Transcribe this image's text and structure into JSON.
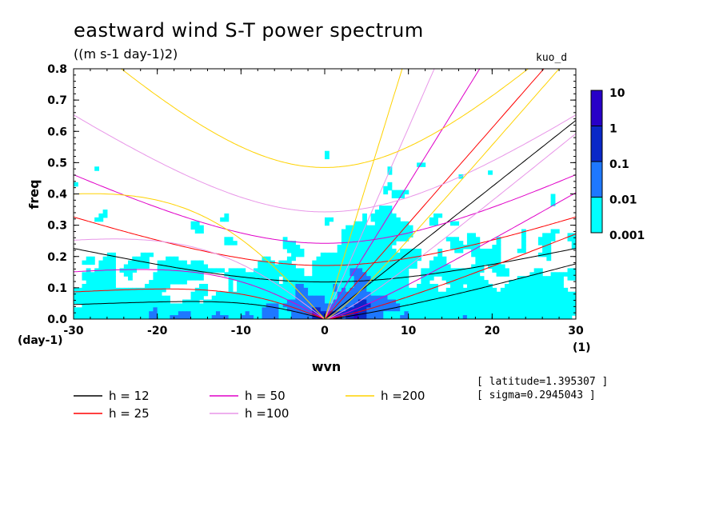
{
  "chart_data": {
    "type": "heatmap",
    "title": "eastward wind S-T power spectrum",
    "subtitle": "((m s-1 day-1)2)",
    "model_label": "kuo_d",
    "xlabel": "wvn",
    "x_unit": "(1)",
    "ylabel": "freq",
    "y_unit": "(day-1)",
    "xlim": [
      -30,
      30
    ],
    "ylim": [
      0,
      0.8
    ],
    "x_ticks": [
      "-30",
      "-20",
      "-10",
      "0",
      "10",
      "20",
      "30"
    ],
    "y_ticks": [
      "0.0",
      "0.1",
      "0.2",
      "0.3",
      "0.4",
      "0.5",
      "0.6",
      "0.7",
      "0.8"
    ],
    "colorbar": {
      "levels": [
        "0.001",
        "0.01",
        "0.1",
        "1",
        "10"
      ],
      "colors": [
        "#00ffff",
        "#1e78ff",
        "#0a28c8",
        "#2800c8"
      ]
    },
    "dispersion_curves": [
      {
        "label": "h = 12",
        "h": 12,
        "color": "#000000"
      },
      {
        "label": "h = 25",
        "h": 25,
        "color": "#ff0000"
      },
      {
        "label": "h = 50",
        "h": 50,
        "color": "#e000c8"
      },
      {
        "label": "h =100",
        "h": 100,
        "color": "#e896e8"
      },
      {
        "label": "h =200",
        "h": 200,
        "color": "#ffd200"
      }
    ],
    "info": [
      "[ latitude=1.395307 ]",
      "[ sigma=0.2945043 ]"
    ]
  }
}
